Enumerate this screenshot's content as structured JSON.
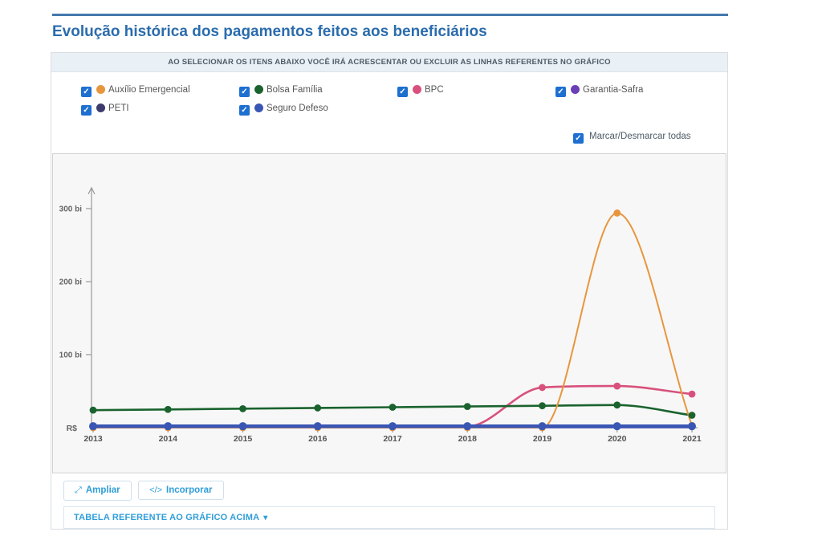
{
  "page": {
    "title": "Evolução histórica dos pagamentos feitos aos beneficiários"
  },
  "colors": {
    "title_blue": "#2b6cad",
    "rule_blue": "#4478ad",
    "checkbox_blue": "#1d6fd0",
    "link_blue": "#2e9ed9"
  },
  "icons": {
    "check": "✓",
    "expand": "⤢",
    "code": "</>",
    "caret_down": "▾"
  },
  "panel": {
    "instruction": "AO SELECIONAR OS ITENS ABAIXO VOCÊ IRÁ ACRESCENTAR OU EXCLUIR AS LINHAS REFERENTES NO GRÁFICO",
    "legend_items": [
      {
        "label": "Auxílio Emergencial",
        "color": "#E8963E",
        "checked": true
      },
      {
        "label": "Bolsa Família",
        "color": "#1A632E",
        "checked": true
      },
      {
        "label": "BPC",
        "color": "#D8517C",
        "checked": true
      },
      {
        "label": "Garantia-Safra",
        "color": "#6B3FB5",
        "checked": true
      },
      {
        "label": "PETI",
        "color": "#3D3A6E",
        "checked": true
      },
      {
        "label": "Seguro Defeso",
        "color": "#3A56B4",
        "checked": true
      }
    ],
    "toggle_all_label": "Marcar/Desmarcar todas",
    "toggle_all_checked": true
  },
  "chart_data": {
    "type": "line",
    "title": "",
    "xlabel": "",
    "ylabel": "",
    "y_unit": "bi",
    "currency_label": "R$",
    "x": [
      "2013",
      "2014",
      "2015",
      "2016",
      "2017",
      "2018",
      "2019",
      "2020",
      "2021"
    ],
    "yticks": [
      {
        "value": 100,
        "label": "100 bi"
      },
      {
        "value": 200,
        "label": "200 bi"
      },
      {
        "value": 300,
        "label": "300 bi"
      }
    ],
    "ylim": [
      0,
      330
    ],
    "grid": false,
    "legend_position": "top-panel",
    "series": [
      {
        "name": "Auxílio Emergencial",
        "color": "#E8963E",
        "values": [
          0,
          0,
          0,
          0,
          0,
          0,
          0,
          294,
          3
        ],
        "lw": 2,
        "r": 4.4
      },
      {
        "name": "Bolsa Família",
        "color": "#1A632E",
        "values": [
          24,
          25,
          26,
          27,
          28,
          29,
          30,
          31,
          17
        ],
        "lw": 2.6,
        "r": 4.4
      },
      {
        "name": "BPC",
        "color": "#D8517C",
        "values": [
          1,
          1,
          1,
          1,
          1,
          1.5,
          55,
          57,
          46
        ],
        "lw": 2.6,
        "r": 4.4
      },
      {
        "name": "Garantia-Safra",
        "color": "#6B3FB5",
        "values": [
          0.4,
          0.4,
          0.4,
          0.4,
          0.4,
          0.4,
          0.4,
          0.4,
          0.4
        ],
        "lw": 2.4,
        "r": 3.5
      },
      {
        "name": "PETI",
        "color": "#3D3A6E",
        "values": [
          0.7,
          0.7,
          0.7,
          0.7,
          0.7,
          0.7,
          0.7,
          0.7,
          0.7
        ],
        "lw": 2.4,
        "r": 3.8
      },
      {
        "name": "Seguro Defeso",
        "color": "#3A56B4",
        "values": [
          2,
          2,
          2,
          2,
          2,
          2,
          2,
          2,
          2
        ],
        "lw": 4.5,
        "r": 5
      }
    ]
  },
  "footer": {
    "ampliar_label": "Ampliar",
    "incorporar_label": "Incorporar",
    "tabela_label": "TABELA REFERENTE AO GRÁFICO ACIMA"
  }
}
